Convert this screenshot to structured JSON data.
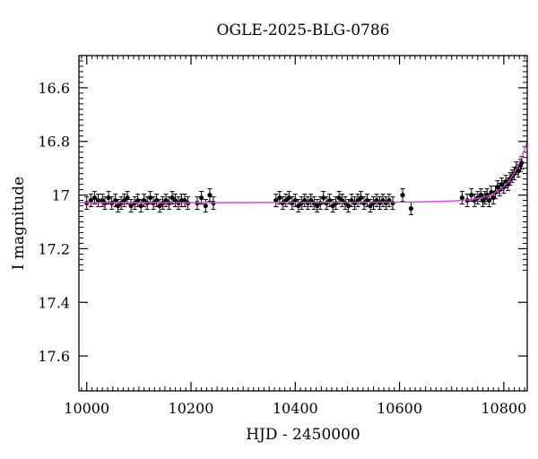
{
  "chart_data": {
    "type": "scatter",
    "title": "OGLE-2025-BLG-0786",
    "xlabel": "HJD - 2450000",
    "ylabel": "I magnitude",
    "xlim": [
      9985,
      10845
    ],
    "ylim": [
      17.73,
      16.48
    ],
    "y_inverted": true,
    "grid": false,
    "x_ticks": [
      10000,
      10200,
      10400,
      10600,
      10800
    ],
    "x_tick_labels": [
      "10000",
      "10200",
      "10400",
      "10600",
      "10800"
    ],
    "y_ticks": [
      16.6,
      16.8,
      17,
      17.2,
      17.4,
      17.6
    ],
    "y_tick_labels": [
      "16.6",
      "16.8",
      "17",
      "17.2",
      "17.4",
      "17.6"
    ],
    "point_color": "#000000",
    "model_color": "#e040e0",
    "series": [
      {
        "kind": "points",
        "points": [
          [
            10000,
            17.03
          ],
          [
            10008,
            17.02
          ],
          [
            10015,
            17.01
          ],
          [
            10022,
            17.02
          ],
          [
            10030,
            17.02
          ],
          [
            10035,
            17.03
          ],
          [
            10042,
            17.01
          ],
          [
            10048,
            17.03
          ],
          [
            10055,
            17.02
          ],
          [
            10060,
            17.04
          ],
          [
            10066,
            17.03
          ],
          [
            10072,
            17.02
          ],
          [
            10078,
            17.01
          ],
          [
            10085,
            17.04
          ],
          [
            10092,
            17.03
          ],
          [
            10098,
            17.02
          ],
          [
            10104,
            17.04
          ],
          [
            10110,
            17.02
          ],
          [
            10116,
            17.03
          ],
          [
            10122,
            17.01
          ],
          [
            10128,
            17.03
          ],
          [
            10134,
            17.02
          ],
          [
            10140,
            17.04
          ],
          [
            10146,
            17.03
          ],
          [
            10152,
            17.02
          ],
          [
            10158,
            17.03
          ],
          [
            10164,
            17.01
          ],
          [
            10170,
            17.02
          ],
          [
            10176,
            17.03
          ],
          [
            10182,
            17.02
          ],
          [
            10188,
            17.02
          ],
          [
            10194,
            17.03
          ],
          [
            10212,
            17.03
          ],
          [
            10220,
            17.01
          ],
          [
            10228,
            17.04
          ],
          [
            10236,
            17.0
          ],
          [
            10243,
            17.03
          ],
          [
            10363,
            17.02
          ],
          [
            10370,
            17.01
          ],
          [
            10376,
            17.03
          ],
          [
            10382,
            17.02
          ],
          [
            10388,
            17.01
          ],
          [
            10394,
            17.03
          ],
          [
            10400,
            17.02
          ],
          [
            10406,
            17.04
          ],
          [
            10412,
            17.03
          ],
          [
            10418,
            17.02
          ],
          [
            10424,
            17.03
          ],
          [
            10430,
            17.02
          ],
          [
            10436,
            17.03
          ],
          [
            10442,
            17.04
          ],
          [
            10448,
            17.03
          ],
          [
            10454,
            17.01
          ],
          [
            10460,
            17.03
          ],
          [
            10466,
            17.02
          ],
          [
            10472,
            17.04
          ],
          [
            10478,
            17.03
          ],
          [
            10484,
            17.01
          ],
          [
            10490,
            17.02
          ],
          [
            10496,
            17.03
          ],
          [
            10502,
            17.04
          ],
          [
            10508,
            17.02
          ],
          [
            10514,
            17.03
          ],
          [
            10520,
            17.02
          ],
          [
            10526,
            17.01
          ],
          [
            10532,
            17.03
          ],
          [
            10538,
            17.02
          ],
          [
            10544,
            17.04
          ],
          [
            10550,
            17.03
          ],
          [
            10556,
            17.02
          ],
          [
            10562,
            17.03
          ],
          [
            10568,
            17.02
          ],
          [
            10574,
            17.03
          ],
          [
            10580,
            17.02
          ],
          [
            10587,
            17.03
          ],
          [
            10606,
            17.0
          ],
          [
            10622,
            17.05
          ],
          [
            10720,
            17.01
          ],
          [
            10730,
            17.02
          ],
          [
            10738,
            17.0
          ],
          [
            10744,
            17.02
          ],
          [
            10750,
            17.01
          ],
          [
            10756,
            17.0
          ],
          [
            10760,
            17.02
          ],
          [
            10764,
            17.01
          ],
          [
            10768,
            17.0
          ],
          [
            10772,
            17.02
          ],
          [
            10776,
            16.99
          ],
          [
            10780,
            17.01
          ],
          [
            10784,
            16.99
          ],
          [
            10788,
            16.97
          ],
          [
            10792,
            16.98
          ],
          [
            10796,
            16.96
          ],
          [
            10800,
            16.97
          ],
          [
            10804,
            16.95
          ],
          [
            10808,
            16.96
          ],
          [
            10812,
            16.94
          ],
          [
            10816,
            16.93
          ],
          [
            10820,
            16.92
          ],
          [
            10824,
            16.9
          ],
          [
            10828,
            16.91
          ],
          [
            10832,
            16.89
          ],
          [
            10834,
            16.88
          ]
        ]
      },
      {
        "kind": "model-line",
        "points": [
          [
            9985,
            17.028
          ],
          [
            10100,
            17.028
          ],
          [
            10200,
            17.028
          ],
          [
            10300,
            17.028
          ],
          [
            10400,
            17.027
          ],
          [
            10500,
            17.027
          ],
          [
            10600,
            17.026
          ],
          [
            10650,
            17.025
          ],
          [
            10700,
            17.022
          ],
          [
            10720,
            17.02
          ],
          [
            10740,
            17.016
          ],
          [
            10760,
            17.009
          ],
          [
            10770,
            17.003
          ],
          [
            10780,
            16.994
          ],
          [
            10790,
            16.983
          ],
          [
            10800,
            16.968
          ],
          [
            10810,
            16.947
          ],
          [
            10820,
            16.918
          ],
          [
            10830,
            16.878
          ],
          [
            10838,
            16.84
          ],
          [
            10845,
            16.8
          ]
        ]
      }
    ]
  }
}
